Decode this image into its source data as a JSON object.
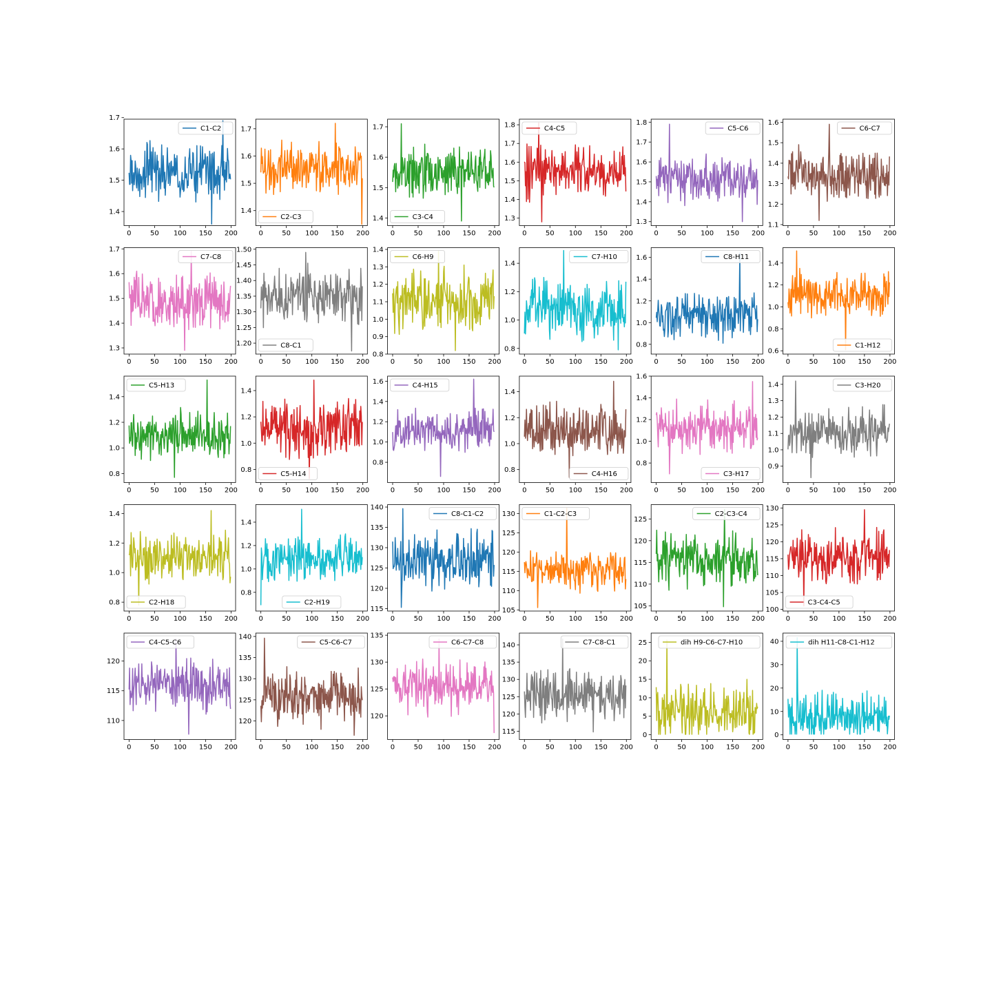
{
  "chart_data": [
    {
      "type": "line",
      "series": [
        {
          "name": "C1-C2",
          "color": "#1f77b4"
        }
      ],
      "x_range": [
        0,
        199
      ],
      "ylim": [
        1.355,
        1.695
      ],
      "xticks": [
        0,
        50,
        100,
        150,
        200
      ],
      "yticks": [
        "1.4",
        "1.5",
        "1.6",
        "1.7"
      ],
      "legend": "upper right",
      "y_center": 1.52,
      "y_spread": 0.055,
      "y_extremes": [
        1.36,
        1.69
      ]
    },
    {
      "type": "line",
      "series": [
        {
          "name": "C2-C3",
          "color": "#ff7f0e"
        }
      ],
      "x_range": [
        0,
        199
      ],
      "ylim": [
        1.345,
        1.735
      ],
      "xticks": [
        0,
        50,
        100,
        150,
        200
      ],
      "yticks": [
        "1.4",
        "1.5",
        "1.6",
        "1.7"
      ],
      "legend": "lower left",
      "y_center": 1.555,
      "y_spread": 0.06,
      "y_extremes": [
        1.35,
        1.72
      ]
    },
    {
      "type": "line",
      "series": [
        {
          "name": "C3-C4",
          "color": "#2ca02c"
        }
      ],
      "x_range": [
        0,
        199
      ],
      "ylim": [
        1.375,
        1.725
      ],
      "xticks": [
        0,
        50,
        100,
        150,
        200
      ],
      "yticks": [
        "1.4",
        "1.5",
        "1.6",
        "1.7"
      ],
      "legend": "lower left",
      "y_center": 1.55,
      "y_spread": 0.055,
      "y_extremes": [
        1.39,
        1.71
      ]
    },
    {
      "type": "line",
      "series": [
        {
          "name": "C4-C5",
          "color": "#d62728"
        }
      ],
      "x_range": [
        0,
        199
      ],
      "ylim": [
        1.26,
        1.83
      ],
      "xticks": [
        0,
        50,
        100,
        150,
        200
      ],
      "yticks": [
        "1.3",
        "1.4",
        "1.5",
        "1.6",
        "1.7",
        "1.8"
      ],
      "legend": "upper left",
      "y_center": 1.55,
      "y_spread": 0.09,
      "y_extremes": [
        1.28,
        1.81
      ]
    },
    {
      "type": "line",
      "series": [
        {
          "name": "C5-C6",
          "color": "#9467bd"
        }
      ],
      "x_range": [
        0,
        199
      ],
      "ylim": [
        1.28,
        1.815
      ],
      "xticks": [
        0,
        50,
        100,
        150,
        200
      ],
      "yticks": [
        "1.3",
        "1.4",
        "1.5",
        "1.6",
        "1.7",
        "1.8"
      ],
      "legend": "upper right",
      "y_center": 1.51,
      "y_spread": 0.075,
      "y_extremes": [
        1.3,
        1.79
      ]
    },
    {
      "type": "line",
      "series": [
        {
          "name": "C6-C7",
          "color": "#8c564b"
        }
      ],
      "x_range": [
        0,
        199
      ],
      "ylim": [
        1.095,
        1.615
      ],
      "xticks": [
        0,
        50,
        100,
        150,
        200
      ],
      "yticks": [
        "1.1",
        "1.2",
        "1.3",
        "1.4",
        "1.5",
        "1.6"
      ],
      "legend": "upper right",
      "y_center": 1.34,
      "y_spread": 0.08,
      "y_extremes": [
        1.12,
        1.59
      ]
    },
    {
      "type": "line",
      "series": [
        {
          "name": "C7-C8",
          "color": "#e377c2"
        }
      ],
      "x_range": [
        0,
        199
      ],
      "ylim": [
        1.275,
        1.705
      ],
      "xticks": [
        0,
        50,
        100,
        150,
        200
      ],
      "yticks": [
        "1.3",
        "1.4",
        "1.5",
        "1.6",
        "1.7"
      ],
      "legend": "upper right",
      "y_center": 1.49,
      "y_spread": 0.07,
      "y_extremes": [
        1.29,
        1.69
      ]
    },
    {
      "type": "line",
      "series": [
        {
          "name": "C8-C1",
          "color": "#7f7f7f"
        }
      ],
      "x_range": [
        0,
        199
      ],
      "ylim": [
        1.165,
        1.505
      ],
      "xticks": [
        0,
        50,
        100,
        150,
        200
      ],
      "yticks": [
        "1.20",
        "1.25",
        "1.30",
        "1.35",
        "1.40",
        "1.45",
        "1.50"
      ],
      "legend": "lower left",
      "y_center": 1.35,
      "y_spread": 0.055,
      "y_extremes": [
        1.175,
        1.49
      ]
    },
    {
      "type": "line",
      "series": [
        {
          "name": "C6-H9",
          "color": "#bcbd22"
        }
      ],
      "x_range": [
        0,
        199
      ],
      "ylim": [
        0.8,
        1.41
      ],
      "xticks": [
        0,
        50,
        100,
        150,
        200
      ],
      "yticks": [
        "0.8",
        "0.9",
        "1.0",
        "1.1",
        "1.2",
        "1.3",
        "1.4"
      ],
      "legend": "upper left",
      "y_center": 1.1,
      "y_spread": 0.11,
      "y_extremes": [
        0.82,
        1.39
      ]
    },
    {
      "type": "line",
      "series": [
        {
          "name": "C7-H10",
          "color": "#17becf"
        }
      ],
      "x_range": [
        0,
        199
      ],
      "ylim": [
        0.76,
        1.51
      ],
      "xticks": [
        0,
        50,
        100,
        150,
        200
      ],
      "yticks": [
        "0.8",
        "1.0",
        "1.2",
        "1.4"
      ],
      "legend": "upper right",
      "y_center": 1.08,
      "y_spread": 0.13,
      "y_extremes": [
        0.79,
        1.49
      ]
    },
    {
      "type": "line",
      "series": [
        {
          "name": "C8-H11",
          "color": "#1f77b4"
        }
      ],
      "x_range": [
        0,
        199
      ],
      "ylim": [
        0.71,
        1.69
      ],
      "xticks": [
        0,
        50,
        100,
        150,
        200
      ],
      "yticks": [
        "0.8",
        "1.0",
        "1.2",
        "1.4",
        "1.6"
      ],
      "legend": "upper right",
      "y_center": 1.07,
      "y_spread": 0.13,
      "y_extremes": [
        0.81,
        1.64
      ]
    },
    {
      "type": "line",
      "series": [
        {
          "name": "C1-H12",
          "color": "#ff7f0e"
        }
      ],
      "x_range": [
        0,
        199
      ],
      "ylim": [
        0.57,
        1.54
      ],
      "xticks": [
        0,
        50,
        100,
        150,
        200
      ],
      "yticks": [
        "0.6",
        "0.8",
        "1.0",
        "1.2",
        "1.4"
      ],
      "legend": "lower right",
      "y_center": 1.11,
      "y_spread": 0.13,
      "y_extremes": [
        0.61,
        1.51
      ]
    },
    {
      "type": "line",
      "series": [
        {
          "name": "C5-H13",
          "color": "#2ca02c"
        }
      ],
      "x_range": [
        0,
        199
      ],
      "ylim": [
        0.73,
        1.56
      ],
      "xticks": [
        0,
        50,
        100,
        150,
        200
      ],
      "yticks": [
        "0.8",
        "1.0",
        "1.2",
        "1.4"
      ],
      "legend": "upper left",
      "y_center": 1.1,
      "y_spread": 0.12,
      "y_extremes": [
        0.77,
        1.53
      ]
    },
    {
      "type": "line",
      "series": [
        {
          "name": "C5-H14",
          "color": "#d62728"
        }
      ],
      "x_range": [
        0,
        199
      ],
      "ylim": [
        0.7,
        1.51
      ],
      "xticks": [
        0,
        50,
        100,
        150,
        200
      ],
      "yticks": [
        "0.8",
        "1.0",
        "1.2",
        "1.4"
      ],
      "legend": "lower left",
      "y_center": 1.12,
      "y_spread": 0.14,
      "y_extremes": [
        0.73,
        1.48
      ]
    },
    {
      "type": "line",
      "series": [
        {
          "name": "C4-H15",
          "color": "#9467bd"
        }
      ],
      "x_range": [
        0,
        199
      ],
      "ylim": [
        0.6,
        1.65
      ],
      "xticks": [
        0,
        50,
        100,
        150,
        200
      ],
      "yticks": [
        "0.8",
        "1.0",
        "1.2",
        "1.4",
        "1.6"
      ],
      "legend": "upper left",
      "y_center": 1.1,
      "y_spread": 0.14,
      "y_extremes": [
        0.66,
        1.62
      ]
    },
    {
      "type": "line",
      "series": [
        {
          "name": "C4-H16",
          "color": "#8c564b"
        }
      ],
      "x_range": [
        0,
        199
      ],
      "ylim": [
        0.7,
        1.52
      ],
      "xticks": [
        0,
        50,
        100,
        150,
        200
      ],
      "yticks": [
        "0.8",
        "1.0",
        "1.2",
        "1.4"
      ],
      "legend": "lower right",
      "y_center": 1.1,
      "y_spread": 0.14,
      "y_extremes": [
        0.74,
        1.48
      ]
    },
    {
      "type": "line",
      "series": [
        {
          "name": "C3-H17",
          "color": "#e377c2"
        }
      ],
      "x_range": [
        0,
        199
      ],
      "ylim": [
        0.62,
        1.6
      ],
      "xticks": [
        0,
        50,
        100,
        150,
        200
      ],
      "yticks": [
        "0.8",
        "1.0",
        "1.2",
        "1.4",
        "1.6"
      ],
      "legend": "lower right",
      "y_center": 1.12,
      "y_spread": 0.15,
      "y_extremes": [
        0.7,
        1.55
      ]
    },
    {
      "type": "line",
      "series": [
        {
          "name": "C3-H20",
          "color": "#7f7f7f"
        }
      ],
      "x_range": [
        0,
        199
      ],
      "ylim": [
        0.8,
        1.45
      ],
      "xticks": [
        0,
        50,
        100,
        150,
        200
      ],
      "yticks": [
        "0.9",
        "1.0",
        "1.1",
        "1.2",
        "1.3",
        "1.4"
      ],
      "legend": "upper right",
      "y_center": 1.1,
      "y_spread": 0.1,
      "y_extremes": [
        0.83,
        1.42
      ]
    },
    {
      "type": "line",
      "series": [
        {
          "name": "C2-H18",
          "color": "#bcbd22"
        }
      ],
      "x_range": [
        0,
        199
      ],
      "ylim": [
        0.74,
        1.46
      ],
      "xticks": [
        0,
        50,
        100,
        150,
        200
      ],
      "yticks": [
        "0.8",
        "1.0",
        "1.2",
        "1.4"
      ],
      "legend": "lower left",
      "y_center": 1.1,
      "y_spread": 0.11,
      "y_extremes": [
        0.78,
        1.42
      ]
    },
    {
      "type": "line",
      "series": [
        {
          "name": "C2-H19",
          "color": "#17becf"
        }
      ],
      "x_range": [
        0,
        199
      ],
      "ylim": [
        0.64,
        1.55
      ],
      "xticks": [
        0,
        50,
        100,
        150,
        200
      ],
      "yticks": [
        "0.8",
        "1.0",
        "1.2",
        "1.4"
      ],
      "legend": "lower center",
      "y_center": 1.1,
      "y_spread": 0.13,
      "y_extremes": [
        0.69,
        1.51
      ]
    },
    {
      "type": "line",
      "series": [
        {
          "name": "C8-C1-C2",
          "color": "#1f77b4"
        }
      ],
      "x_range": [
        0,
        199
      ],
      "ylim": [
        114.4,
        140.6
      ],
      "xticks": [
        0,
        50,
        100,
        150,
        200
      ],
      "yticks": [
        "115",
        "120",
        "125",
        "130",
        "135",
        "140"
      ],
      "legend": "upper right",
      "y_center": 127,
      "y_spread": 4.5,
      "y_extremes": [
        115.3,
        139.6
      ]
    },
    {
      "type": "line",
      "series": [
        {
          "name": "C1-C2-C3",
          "color": "#ff7f0e"
        }
      ],
      "x_range": [
        0,
        199
      ],
      "ylim": [
        104.7,
        132.3
      ],
      "xticks": [
        0,
        50,
        100,
        150,
        200
      ],
      "yticks": [
        "105",
        "110",
        "115",
        "120",
        "125",
        "130"
      ],
      "legend": "upper left",
      "y_center": 115,
      "y_spread": 3.5,
      "y_extremes": [
        105.6,
        131.4
      ]
    },
    {
      "type": "line",
      "series": [
        {
          "name": "C2-C3-C4",
          "color": "#2ca02c"
        }
      ],
      "x_range": [
        0,
        199
      ],
      "ylim": [
        103.8,
        128.3
      ],
      "xticks": [
        0,
        50,
        100,
        150,
        200
      ],
      "yticks": [
        "105",
        "110",
        "115",
        "120",
        "125"
      ],
      "legend": "upper right",
      "y_center": 115.5,
      "y_spread": 4,
      "y_extremes": [
        104.8,
        127.2
      ]
    },
    {
      "type": "line",
      "series": [
        {
          "name": "C3-C4-C5",
          "color": "#d62728"
        }
      ],
      "x_range": [
        0,
        199
      ],
      "ylim": [
        99.5,
        131
      ],
      "xticks": [
        0,
        50,
        100,
        150,
        200
      ],
      "yticks": [
        "100",
        "105",
        "110",
        "115",
        "120",
        "125",
        "130"
      ],
      "legend": "lower left",
      "y_center": 116,
      "y_spread": 5,
      "y_extremes": [
        101,
        129.5
      ]
    },
    {
      "type": "line",
      "series": [
        {
          "name": "C4-C5-C6",
          "color": "#9467bd"
        }
      ],
      "x_range": [
        0,
        199
      ],
      "ylim": [
        106.8,
        124.7
      ],
      "xticks": [
        0,
        50,
        100,
        150,
        200
      ],
      "yticks": [
        "110",
        "115",
        "120"
      ],
      "legend": "upper left",
      "y_center": 116,
      "y_spread": 2.8,
      "y_extremes": [
        107.7,
        123.7
      ]
    },
    {
      "type": "line",
      "series": [
        {
          "name": "C5-C6-C7",
          "color": "#8c564b"
        }
      ],
      "x_range": [
        0,
        199
      ],
      "ylim": [
        115.6,
        140.8
      ],
      "xticks": [
        0,
        50,
        100,
        150,
        200
      ],
      "yticks": [
        "120",
        "125",
        "130",
        "135",
        "140"
      ],
      "legend": "upper right",
      "y_center": 126,
      "y_spread": 4,
      "y_extremes": [
        116.6,
        139.6
      ]
    },
    {
      "type": "line",
      "series": [
        {
          "name": "C6-C7-C8",
          "color": "#e377c2"
        }
      ],
      "x_range": [
        0,
        199
      ],
      "ylim": [
        115.6,
        135.4
      ],
      "xticks": [
        0,
        50,
        100,
        150,
        200
      ],
      "yticks": [
        "120",
        "125",
        "130",
        "135"
      ],
      "legend": "upper right",
      "y_center": 125.5,
      "y_spread": 3,
      "y_extremes": [
        116.8,
        134.3
      ]
    },
    {
      "type": "line",
      "series": [
        {
          "name": "C7-C8-C1",
          "color": "#7f7f7f"
        }
      ],
      "x_range": [
        0,
        199
      ],
      "ylim": [
        112.6,
        143.4
      ],
      "xticks": [
        0,
        50,
        100,
        150,
        200
      ],
      "yticks": [
        "115",
        "120",
        "125",
        "130",
        "135",
        "140"
      ],
      "legend": "upper right",
      "y_center": 125.5,
      "y_spread": 4.5,
      "y_extremes": [
        114.8,
        141.7
      ]
    },
    {
      "type": "line",
      "series": [
        {
          "name": "dih H9-C6-C7-H10",
          "color": "#bcbd22"
        }
      ],
      "x_range": [
        0,
        199
      ],
      "ylim": [
        -1.3,
        27.5
      ],
      "xticks": [
        0,
        50,
        100,
        150,
        200
      ],
      "yticks": [
        "0",
        "5",
        "10",
        "15",
        "20",
        "25"
      ],
      "legend": "upper right",
      "y_center": 6,
      "y_spread": 5,
      "y_extremes": [
        0.1,
        25.6
      ]
    },
    {
      "type": "line",
      "series": [
        {
          "name": "dih H11-C8-C1-H12",
          "color": "#17becf"
        }
      ],
      "x_range": [
        0,
        199
      ],
      "ylim": [
        -2,
        43.5
      ],
      "xticks": [
        0,
        50,
        100,
        150,
        200
      ],
      "yticks": [
        "0",
        "10",
        "20",
        "30",
        "40"
      ],
      "legend": "upper right",
      "y_center": 8,
      "y_spread": 7,
      "y_extremes": [
        0.3,
        41.5
      ]
    }
  ]
}
